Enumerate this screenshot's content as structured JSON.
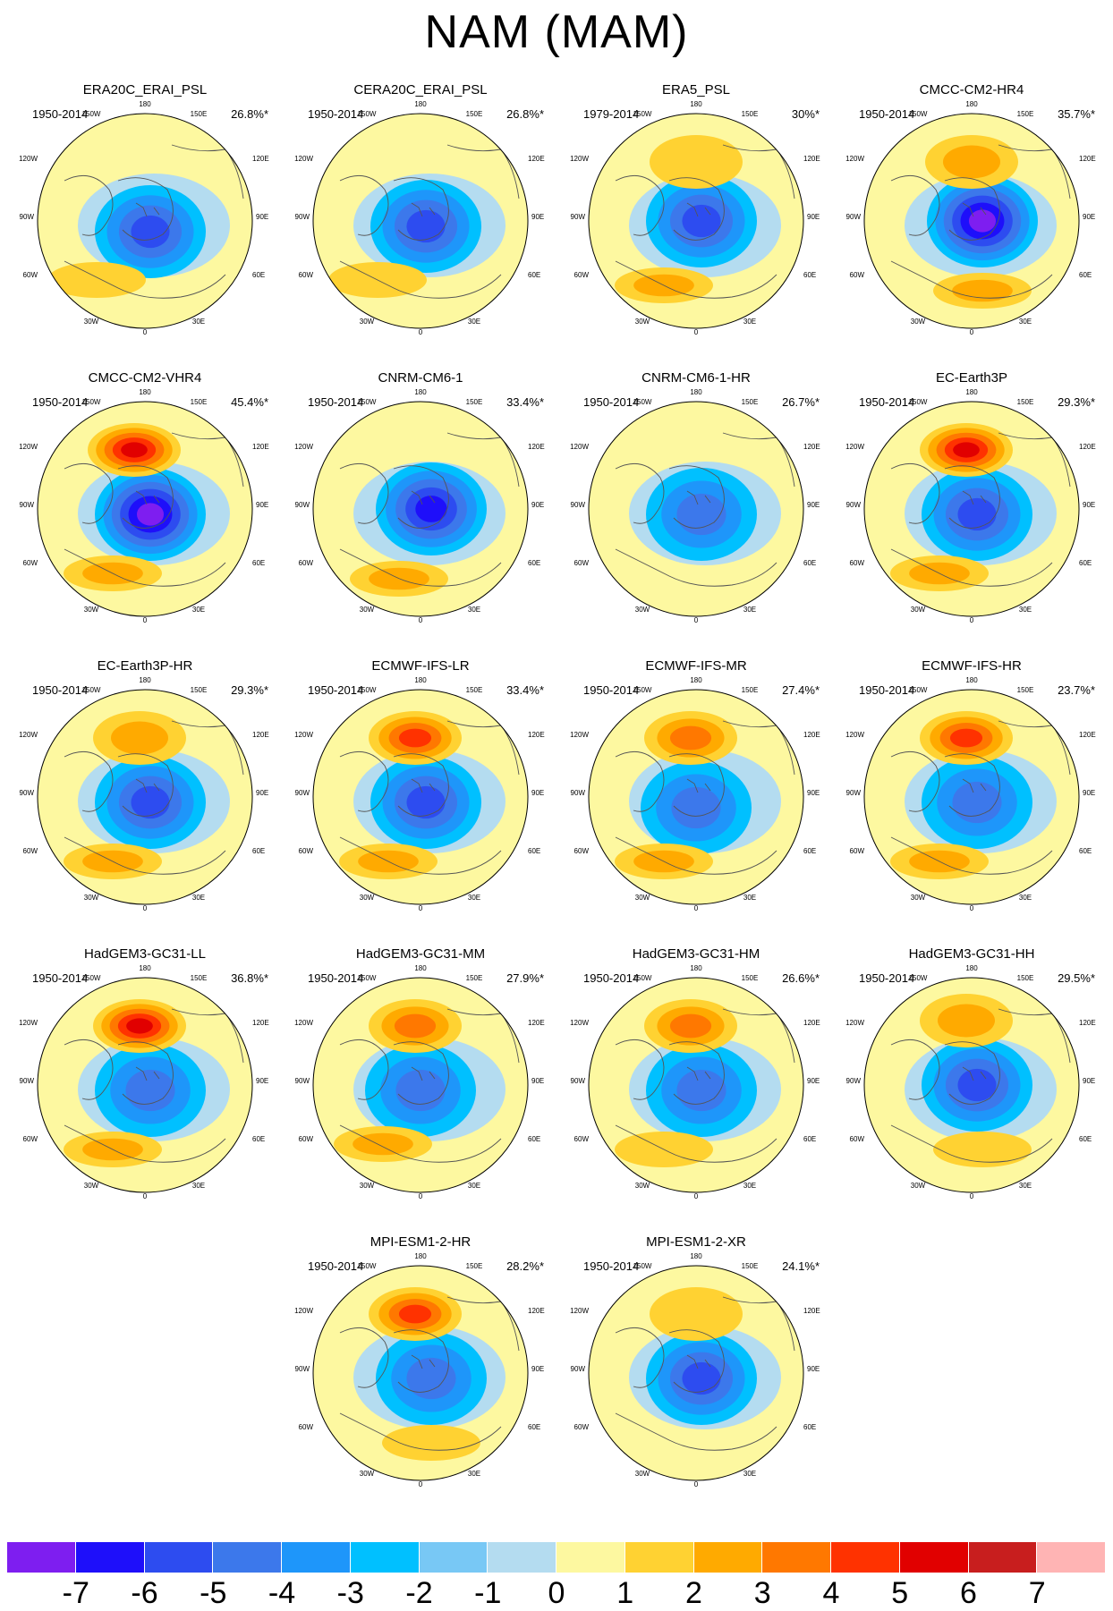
{
  "title": "NAM (MAM)",
  "longitude_labels": {
    "top": "180",
    "bottom": "0",
    "upper_left": "150W",
    "upper_right": "150E",
    "left_upper": "120W",
    "right_upper": "120E",
    "left": "90W",
    "right": "90E",
    "left_lower": "60W",
    "right_lower": "60E",
    "lower_left": "30W",
    "lower_right": "30E"
  },
  "colors": {
    "land_outline": "#555555",
    "frame": "#000000"
  },
  "colorbar": {
    "colors": [
      "#7e1ef0",
      "#1e0ffa",
      "#2d4cf0",
      "#3c78eb",
      "#1e96fa",
      "#00c0ff",
      "#78c8f5",
      "#b4dcf0",
      "#fdf8a0",
      "#ffd232",
      "#ffaa00",
      "#ff7800",
      "#ff3200",
      "#e10000",
      "#c81e1e",
      "#ffb4b4"
    ],
    "labels": [
      "-7",
      "-6",
      "-5",
      "-4",
      "-3",
      "-2",
      "-1",
      "0",
      "1",
      "2",
      "3",
      "4",
      "5",
      "6",
      "7"
    ]
  },
  "panels": [
    {
      "name": "ERA20C_ERAI_PSL",
      "period": "1950-2014",
      "variance": "26.8%*",
      "low": {
        "center": [
          0.05,
          0.1
        ],
        "strength": -4.6
      },
      "pac": {
        "center": [
          0.0,
          -0.6
        ],
        "strength": 0.6
      },
      "atl": {
        "center": [
          -0.45,
          0.55
        ],
        "strength": 1.6
      }
    },
    {
      "name": "CERA20C_ERAI_PSL",
      "period": "1950-2014",
      "variance": "26.8%*",
      "low": {
        "center": [
          0.05,
          0.05
        ],
        "strength": -4.6
      },
      "pac": {
        "center": [
          0.0,
          -0.6
        ],
        "strength": 0.4
      },
      "atl": {
        "center": [
          -0.4,
          0.55
        ],
        "strength": 1.8
      }
    },
    {
      "name": "ERA5_PSL",
      "period": "1979-2014",
      "variance": "30%*",
      "low": {
        "center": [
          0.05,
          0.0
        ],
        "strength": -4.5
      },
      "pac": {
        "center": [
          0.0,
          -0.55
        ],
        "strength": 1.2
      },
      "atl": {
        "center": [
          -0.3,
          0.6
        ],
        "strength": 2.1
      }
    },
    {
      "name": "CMCC-CM2-HR4",
      "period": "1950-2014",
      "variance": "35.7%*",
      "low": {
        "center": [
          0.1,
          0.0
        ],
        "strength": -6.2
      },
      "pac": {
        "center": [
          0.0,
          -0.55
        ],
        "strength": 2.9
      },
      "atl": {
        "center": [
          0.1,
          0.65
        ],
        "strength": 2.0
      }
    },
    {
      "name": "CMCC-CM2-VHR4",
      "period": "1950-2014",
      "variance": "45.4%*",
      "low": {
        "center": [
          0.05,
          0.05
        ],
        "strength": -6.5
      },
      "pac": {
        "center": [
          -0.1,
          -0.55
        ],
        "strength": 5.2
      },
      "atl": {
        "center": [
          -0.3,
          0.6
        ],
        "strength": 2.2
      }
    },
    {
      "name": "CNRM-CM6-1",
      "period": "1950-2014",
      "variance": "33.4%*",
      "low": {
        "center": [
          0.1,
          0.0
        ],
        "strength": -5.2
      },
      "pac": {
        "center": [
          0.0,
          -0.55
        ],
        "strength": 0.3
      },
      "atl": {
        "center": [
          -0.2,
          0.65
        ],
        "strength": 2.1
      }
    },
    {
      "name": "CNRM-CM6-1-HR",
      "period": "1950-2014",
      "variance": "26.7%*",
      "low": {
        "center": [
          0.05,
          0.05
        ],
        "strength": -3.8
      },
      "pac": {
        "center": [
          0.0,
          -0.55
        ],
        "strength": 0.4
      },
      "atl": {
        "center": [
          -0.3,
          0.6
        ],
        "strength": 0.8
      }
    },
    {
      "name": "EC-Earth3P",
      "period": "1950-2014",
      "variance": "29.3%*",
      "low": {
        "center": [
          0.05,
          0.05
        ],
        "strength": -4.8
      },
      "pac": {
        "center": [
          -0.05,
          -0.55
        ],
        "strength": 5.0
      },
      "atl": {
        "center": [
          -0.3,
          0.6
        ],
        "strength": 2.3
      }
    },
    {
      "name": "EC-Earth3P-HR",
      "period": "1950-2014",
      "variance": "29.3%*",
      "low": {
        "center": [
          0.05,
          0.05
        ],
        "strength": -4.4
      },
      "pac": {
        "center": [
          -0.05,
          -0.55
        ],
        "strength": 2.8
      },
      "atl": {
        "center": [
          -0.3,
          0.6
        ],
        "strength": 2.0
      }
    },
    {
      "name": "ECMWF-IFS-LR",
      "period": "1950-2014",
      "variance": "33.4%*",
      "low": {
        "center": [
          0.05,
          0.05
        ],
        "strength": -4.8
      },
      "pac": {
        "center": [
          -0.05,
          -0.55
        ],
        "strength": 4.9
      },
      "atl": {
        "center": [
          -0.3,
          0.6
        ],
        "strength": 2.2
      }
    },
    {
      "name": "ECMWF-IFS-MR",
      "period": "1950-2014",
      "variance": "27.4%*",
      "low": {
        "center": [
          0.0,
          0.1
        ],
        "strength": -3.8
      },
      "pac": {
        "center": [
          -0.05,
          -0.55
        ],
        "strength": 3.9
      },
      "atl": {
        "center": [
          -0.3,
          0.6
        ],
        "strength": 2.1
      }
    },
    {
      "name": "ECMWF-IFS-HR",
      "period": "1950-2014",
      "variance": "23.7%*",
      "low": {
        "center": [
          0.05,
          0.05
        ],
        "strength": -3.4
      },
      "pac": {
        "center": [
          -0.05,
          -0.55
        ],
        "strength": 4.8
      },
      "atl": {
        "center": [
          -0.3,
          0.6
        ],
        "strength": 2.0
      }
    },
    {
      "name": "HadGEM3-GC31-LL",
      "period": "1950-2014",
      "variance": "36.8%*",
      "low": {
        "center": [
          0.05,
          0.05
        ],
        "strength": -3.9
      },
      "pac": {
        "center": [
          -0.05,
          -0.55
        ],
        "strength": 5.2
      },
      "atl": {
        "center": [
          -0.3,
          0.6
        ],
        "strength": 2.3
      }
    },
    {
      "name": "HadGEM3-GC31-MM",
      "period": "1950-2014",
      "variance": "27.9%*",
      "low": {
        "center": [
          0.0,
          0.05
        ],
        "strength": -3.6
      },
      "pac": {
        "center": [
          -0.05,
          -0.55
        ],
        "strength": 3.1
      },
      "atl": {
        "center": [
          -0.35,
          0.55
        ],
        "strength": 2.8
      }
    },
    {
      "name": "HadGEM3-GC31-HM",
      "period": "1950-2014",
      "variance": "26.6%*",
      "low": {
        "center": [
          0.05,
          0.05
        ],
        "strength": -3.7
      },
      "pac": {
        "center": [
          -0.05,
          -0.55
        ],
        "strength": 3.8
      },
      "atl": {
        "center": [
          -0.3,
          0.6
        ],
        "strength": 1.3
      }
    },
    {
      "name": "HadGEM3-GC31-HH",
      "period": "1950-2014",
      "variance": "29.5%*",
      "low": {
        "center": [
          0.05,
          0.0
        ],
        "strength": -4.8
      },
      "pac": {
        "center": [
          -0.05,
          -0.6
        ],
        "strength": 2.7
      },
      "atl": {
        "center": [
          0.1,
          0.6
        ],
        "strength": 1.7
      }
    },
    {
      "name": "MPI-ESM1-2-HR",
      "period": "1950-2014",
      "variance": "28.2%*",
      "low": {
        "center": [
          0.1,
          0.05
        ],
        "strength": -3.8
      },
      "pac": {
        "center": [
          -0.05,
          -0.55
        ],
        "strength": 4.9
      },
      "atl": {
        "center": [
          0.1,
          0.65
        ],
        "strength": 1.6
      }
    },
    {
      "name": "MPI-ESM1-2-XR",
      "period": "1950-2014",
      "variance": "24.1%*",
      "low": {
        "center": [
          0.05,
          0.05
        ],
        "strength": -4.1
      },
      "pac": {
        "center": [
          0.0,
          -0.55
        ],
        "strength": 1.5
      },
      "atl": {
        "center": [
          -0.3,
          0.6
        ],
        "strength": 0.5
      }
    }
  ]
}
